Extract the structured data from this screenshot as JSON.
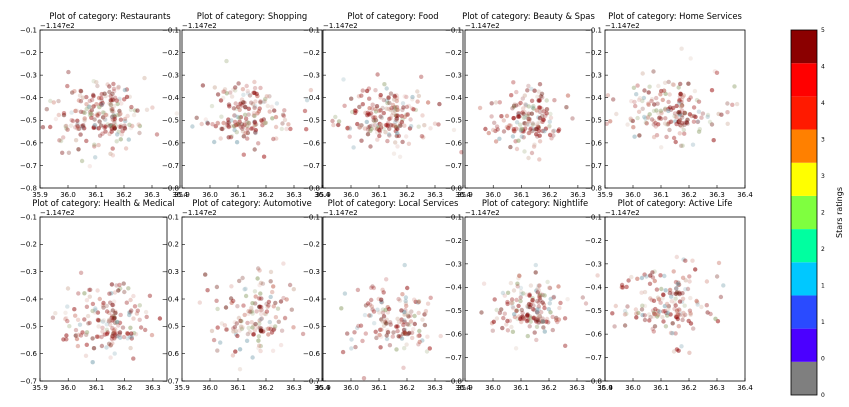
{
  "chart_data": {
    "type": "scatter",
    "title_prefix": "Plot of category: ",
    "y_offset_label": "−1.147e2",
    "colorbar": {
      "label": "Stars ratings",
      "tick_labels": [
        "0",
        "0",
        "1",
        "1",
        "2",
        "2",
        "3",
        "3",
        "4",
        "4",
        "5"
      ],
      "colors": [
        "#7f7f7f",
        "#4b00ff",
        "#2a4bff",
        "#00c8ff",
        "#00ffa0",
        "#7fff3f",
        "#ffff00",
        "#ff8000",
        "#ff1a00",
        "#ff0000",
        "#8b0000"
      ]
    },
    "panels": [
      {
        "title": "Restaurants",
        "x_ticks": [
          "35.9",
          "36.0",
          "36.1",
          "36.2",
          "36.3",
          "36.4"
        ],
        "xlim": [
          35.9,
          36.4
        ],
        "y_ticks": [
          "−0.1",
          "−0.2",
          "−0.3",
          "−0.4",
          "−0.5",
          "−0.6",
          "−0.7",
          "−0.8"
        ],
        "ylim": [
          -0.8,
          -0.1
        ],
        "cluster": {
          "cx": 36.12,
          "cy": -0.47,
          "sx": 0.09,
          "sy": 0.075,
          "n": 230
        }
      },
      {
        "title": "Shopping",
        "x_ticks": [
          "35.9",
          "36.0",
          "36.1",
          "36.2",
          "36.3",
          "36.4"
        ],
        "xlim": [
          35.9,
          36.4
        ],
        "y_ticks": [
          "−0.1",
          "−0.2",
          "−0.3",
          "−0.4",
          "−0.5",
          "−0.6",
          "−0.7",
          "−0.8"
        ],
        "ylim": [
          -0.8,
          -0.1
        ],
        "cluster": {
          "cx": 36.12,
          "cy": -0.46,
          "sx": 0.08,
          "sy": 0.07,
          "n": 180
        }
      },
      {
        "title": "Food",
        "x_ticks": [
          "35.9",
          "36.0",
          "36.1",
          "36.2",
          "36.3",
          "36.4"
        ],
        "xlim": [
          35.9,
          36.4
        ],
        "y_ticks": [
          "−0.1",
          "−0.2",
          "−0.3",
          "−0.4",
          "−0.5",
          "−0.6",
          "−0.7",
          "−0.8"
        ],
        "ylim": [
          -0.8,
          -0.1
        ],
        "cluster": {
          "cx": 36.12,
          "cy": -0.47,
          "sx": 0.08,
          "sy": 0.07,
          "n": 200
        }
      },
      {
        "title": "Beauty & Spas",
        "x_ticks": [
          "35.9",
          "36.0",
          "36.1",
          "36.2",
          "36.3"
        ],
        "xlim": [
          35.9,
          36.35
        ],
        "y_ticks": [
          "−0.1",
          "−0.2",
          "−0.3",
          "−0.4",
          "−0.5",
          "−0.6",
          "−0.7",
          "−0.8"
        ],
        "ylim": [
          -0.8,
          -0.1
        ],
        "cluster": {
          "cx": 36.12,
          "cy": -0.48,
          "sx": 0.07,
          "sy": 0.07,
          "n": 170
        }
      },
      {
        "title": "Home Services",
        "x_ticks": [
          "35.9",
          "36.0",
          "36.1",
          "36.2",
          "36.3",
          "36.4"
        ],
        "xlim": [
          35.9,
          36.4
        ],
        "y_ticks": [
          "−0.1",
          "−0.2",
          "−0.3",
          "−0.4",
          "−0.5",
          "−0.6",
          "−0.7",
          "−0.8"
        ],
        "ylim": [
          -0.8,
          -0.1
        ],
        "cluster": {
          "cx": 36.13,
          "cy": -0.45,
          "sx": 0.09,
          "sy": 0.07,
          "n": 190
        }
      },
      {
        "title": "Health & Medical",
        "x_ticks": [
          "35.9",
          "36.0",
          "36.1",
          "36.2",
          "36.3"
        ],
        "xlim": [
          35.9,
          36.35
        ],
        "y_ticks": [
          "−0.1",
          "−0.2",
          "−0.3",
          "−0.4",
          "−0.5",
          "−0.6",
          "−0.7"
        ],
        "ylim": [
          -0.7,
          -0.1
        ],
        "cluster": {
          "cx": 36.12,
          "cy": -0.47,
          "sx": 0.08,
          "sy": 0.07,
          "n": 170
        }
      },
      {
        "title": "Automotive",
        "x_ticks": [
          "35.9",
          "36.0",
          "36.1",
          "36.2",
          "36.3",
          "36.4"
        ],
        "xlim": [
          35.9,
          36.4
        ],
        "y_ticks": [
          "−0.1",
          "−0.2",
          "−0.3",
          "−0.4",
          "−0.5",
          "−0.6",
          "−0.7"
        ],
        "ylim": [
          -0.7,
          -0.1
        ],
        "cluster": {
          "cx": 36.14,
          "cy": -0.45,
          "sx": 0.08,
          "sy": 0.07,
          "n": 150
        }
      },
      {
        "title": "Local Services",
        "x_ticks": [
          "35.9",
          "36.0",
          "36.1",
          "36.2",
          "36.3",
          "36.4"
        ],
        "xlim": [
          35.9,
          36.4
        ],
        "y_ticks": [
          "−0.1",
          "−0.2",
          "−0.3",
          "−0.4",
          "−0.5",
          "−0.6",
          "−0.7"
        ],
        "ylim": [
          -0.7,
          -0.1
        ],
        "cluster": {
          "cx": 36.15,
          "cy": -0.47,
          "sx": 0.08,
          "sy": 0.07,
          "n": 150
        }
      },
      {
        "title": "Nightlife",
        "x_ticks": [
          "35.9",
          "36.0",
          "36.1",
          "36.2",
          "36.3",
          "36.4"
        ],
        "xlim": [
          35.9,
          36.4
        ],
        "y_ticks": [
          "−0.1",
          "−0.2",
          "−0.3",
          "−0.4",
          "−0.5",
          "−0.6",
          "−0.7",
          "−0.8"
        ],
        "ylim": [
          -0.8,
          -0.1
        ],
        "cluster": {
          "cx": 36.12,
          "cy": -0.48,
          "sx": 0.07,
          "sy": 0.06,
          "n": 170
        }
      },
      {
        "title": "Active Life",
        "x_ticks": [
          "35.9",
          "36.0",
          "36.1",
          "36.2",
          "36.3",
          "36.4"
        ],
        "xlim": [
          35.9,
          36.4
        ],
        "y_ticks": [
          "−0.1",
          "−0.2",
          "−0.3",
          "−0.4",
          "−0.5",
          "−0.6",
          "−0.7",
          "−0.8"
        ],
        "ylim": [
          -0.8,
          -0.1
        ],
        "cluster": {
          "cx": 36.12,
          "cy": -0.45,
          "sx": 0.09,
          "sy": 0.08,
          "n": 170
        }
      }
    ]
  }
}
